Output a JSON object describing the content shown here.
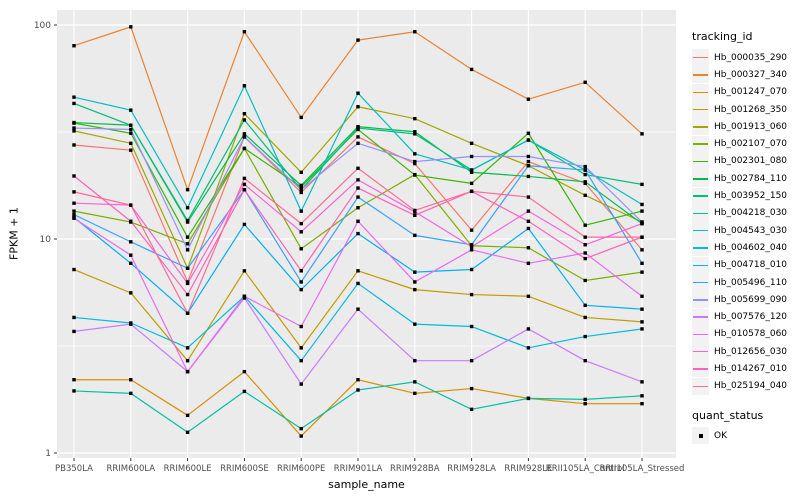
{
  "figure": {
    "background": "#FFFFFF",
    "panel_background": "#EBEBEB",
    "grid_color": "#FFFFFF",
    "tick_label_color": "#4D4D4D",
    "tick_mark_color": "#333333",
    "legend_key_background": "#F2F2F2"
  },
  "chart_data": {
    "type": "line",
    "title": "",
    "xlabel": "sample_name",
    "ylabel": "FPKM + 1",
    "y_scale": "log10",
    "ylim": [
      1,
      100
    ],
    "y_ticks": [
      1,
      10,
      100
    ],
    "y_tick_labels": [
      "1",
      "10",
      "100"
    ],
    "y_minor_breaks": [
      3.162,
      31.62
    ],
    "grid": true,
    "legend_position": "right",
    "point_shape": "square",
    "point_color": "#000000",
    "categories": [
      "PB350LA",
      "RRIM600LA",
      "RRIM600LE",
      "RRIM600SE",
      "RRIM600PE",
      "RRIM901LA",
      "RRIM928BA",
      "RRIM928LA",
      "RRIM928LE",
      "RRII105LA_Control",
      "RRII105LA_Stressed"
    ],
    "legend": {
      "color_title": "tracking_id",
      "shape_title": "quant_status",
      "shape_items": [
        {
          "label": "OK"
        }
      ]
    },
    "series": [
      {
        "name": "Hb_000035_290",
        "color": "#F8766D",
        "values": [
          27.5,
          26,
          6.3,
          30,
          16.5,
          30,
          22.5,
          11,
          23,
          18.2,
          8.9
        ]
      },
      {
        "name": "Hb_000327_340",
        "color": "#EA8331",
        "values": [
          80,
          98,
          17,
          93,
          37,
          85,
          93,
          62,
          45,
          54,
          31
        ]
      },
      {
        "name": "Hb_001247_070",
        "color": "#D89000",
        "values": [
          2.2,
          2.2,
          1.5,
          2.4,
          1.2,
          2.2,
          1.9,
          2.0,
          1.8,
          1.7,
          1.7
        ]
      },
      {
        "name": "Hb_001268_350",
        "color": "#C09B00",
        "values": [
          7.2,
          5.6,
          2.7,
          7.1,
          3.1,
          7.1,
          5.8,
          5.5,
          5.4,
          4.3,
          4.1
        ]
      },
      {
        "name": "Hb_001913_060",
        "color": "#A3A500",
        "values": [
          32,
          28,
          7.3,
          38.5,
          20.5,
          41.5,
          36.5,
          28,
          22,
          16,
          12
        ]
      },
      {
        "name": "Hb_002107_070",
        "color": "#7CAE00",
        "values": [
          13.5,
          12,
          9.5,
          26.5,
          9,
          14,
          20,
          9.3,
          9.1,
          6.4,
          7
        ]
      },
      {
        "name": "Hb_002301_080",
        "color": "#39B600",
        "values": [
          34.8,
          31.2,
          10.2,
          26.5,
          17.5,
          32.5,
          19.9,
          18.2,
          31.2,
          11.6,
          13.5
        ]
      },
      {
        "name": "Hb_002784_110",
        "color": "#00BB4E",
        "values": [
          35,
          34,
          12,
          31,
          17.8,
          33.5,
          31.7,
          20.5,
          19.6,
          18.5,
          11.8
        ]
      },
      {
        "name": "Hb_003952_150",
        "color": "#00BF7D",
        "values": [
          43,
          34,
          12.2,
          36,
          17,
          33,
          31,
          21,
          29,
          20,
          18
        ]
      },
      {
        "name": "Hb_004218_030",
        "color": "#00C1A3",
        "values": [
          1.95,
          1.9,
          1.25,
          1.94,
          1.3,
          1.97,
          2.15,
          1.6,
          1.8,
          1.78,
          1.85
        ]
      },
      {
        "name": "Hb_004543_030",
        "color": "#00BFC4",
        "values": [
          46,
          40,
          14,
          52,
          13.5,
          48,
          25,
          21,
          29,
          21,
          14.5
        ]
      },
      {
        "name": "Hb_004602_040",
        "color": "#00BAE0",
        "values": [
          4.3,
          4.05,
          3.1,
          5.4,
          2.7,
          6.2,
          4.0,
          3.9,
          3.1,
          3.5,
          3.8
        ]
      },
      {
        "name": "Hb_004718_010",
        "color": "#00B0F6",
        "values": [
          12.6,
          7.7,
          4.5,
          11.7,
          5.8,
          10.6,
          7.0,
          7.2,
          11.2,
          4.9,
          4.7
        ]
      },
      {
        "name": "Hb_005496_110",
        "color": "#35A2FF",
        "values": [
          13,
          9.7,
          7.3,
          17,
          6.3,
          15.7,
          10.4,
          9.4,
          22,
          21,
          7.7
        ]
      },
      {
        "name": "Hb_005699_090",
        "color": "#9590FF",
        "values": [
          33,
          32.5,
          8.9,
          30,
          17,
          28,
          23,
          24.3,
          24.3,
          21.8,
          12
        ]
      },
      {
        "name": "Hb_007576_120",
        "color": "#C77CFF",
        "values": [
          3.7,
          4.0,
          2.4,
          5.3,
          2.1,
          4.7,
          2.7,
          2.7,
          3.8,
          2.7,
          2.15
        ]
      },
      {
        "name": "Hb_010578_060",
        "color": "#E76BF3",
        "values": [
          12.5,
          8.4,
          2.4,
          5.4,
          3.9,
          12.1,
          6.3,
          8.9,
          7.7,
          8.6,
          5.4
        ]
      },
      {
        "name": "Hb_012656_030",
        "color": "#FA62DB",
        "values": [
          14.7,
          14.4,
          6.2,
          18,
          10.8,
          18.9,
          13.4,
          9.2,
          13.5,
          9.4,
          11.8
        ]
      },
      {
        "name": "Hb_014267_010",
        "color": "#FF62BC",
        "values": [
          19.7,
          12.1,
          5.5,
          17,
          7.1,
          17.3,
          12.9,
          16.7,
          12.1,
          8.1,
          10.2
        ]
      },
      {
        "name": "Hb_025194_040",
        "color": "#FF6A98",
        "values": [
          16.6,
          14.4,
          4.5,
          19.2,
          11.8,
          21.4,
          13.6,
          16.7,
          15.7,
          10.2,
          10.2
        ]
      }
    ]
  }
}
